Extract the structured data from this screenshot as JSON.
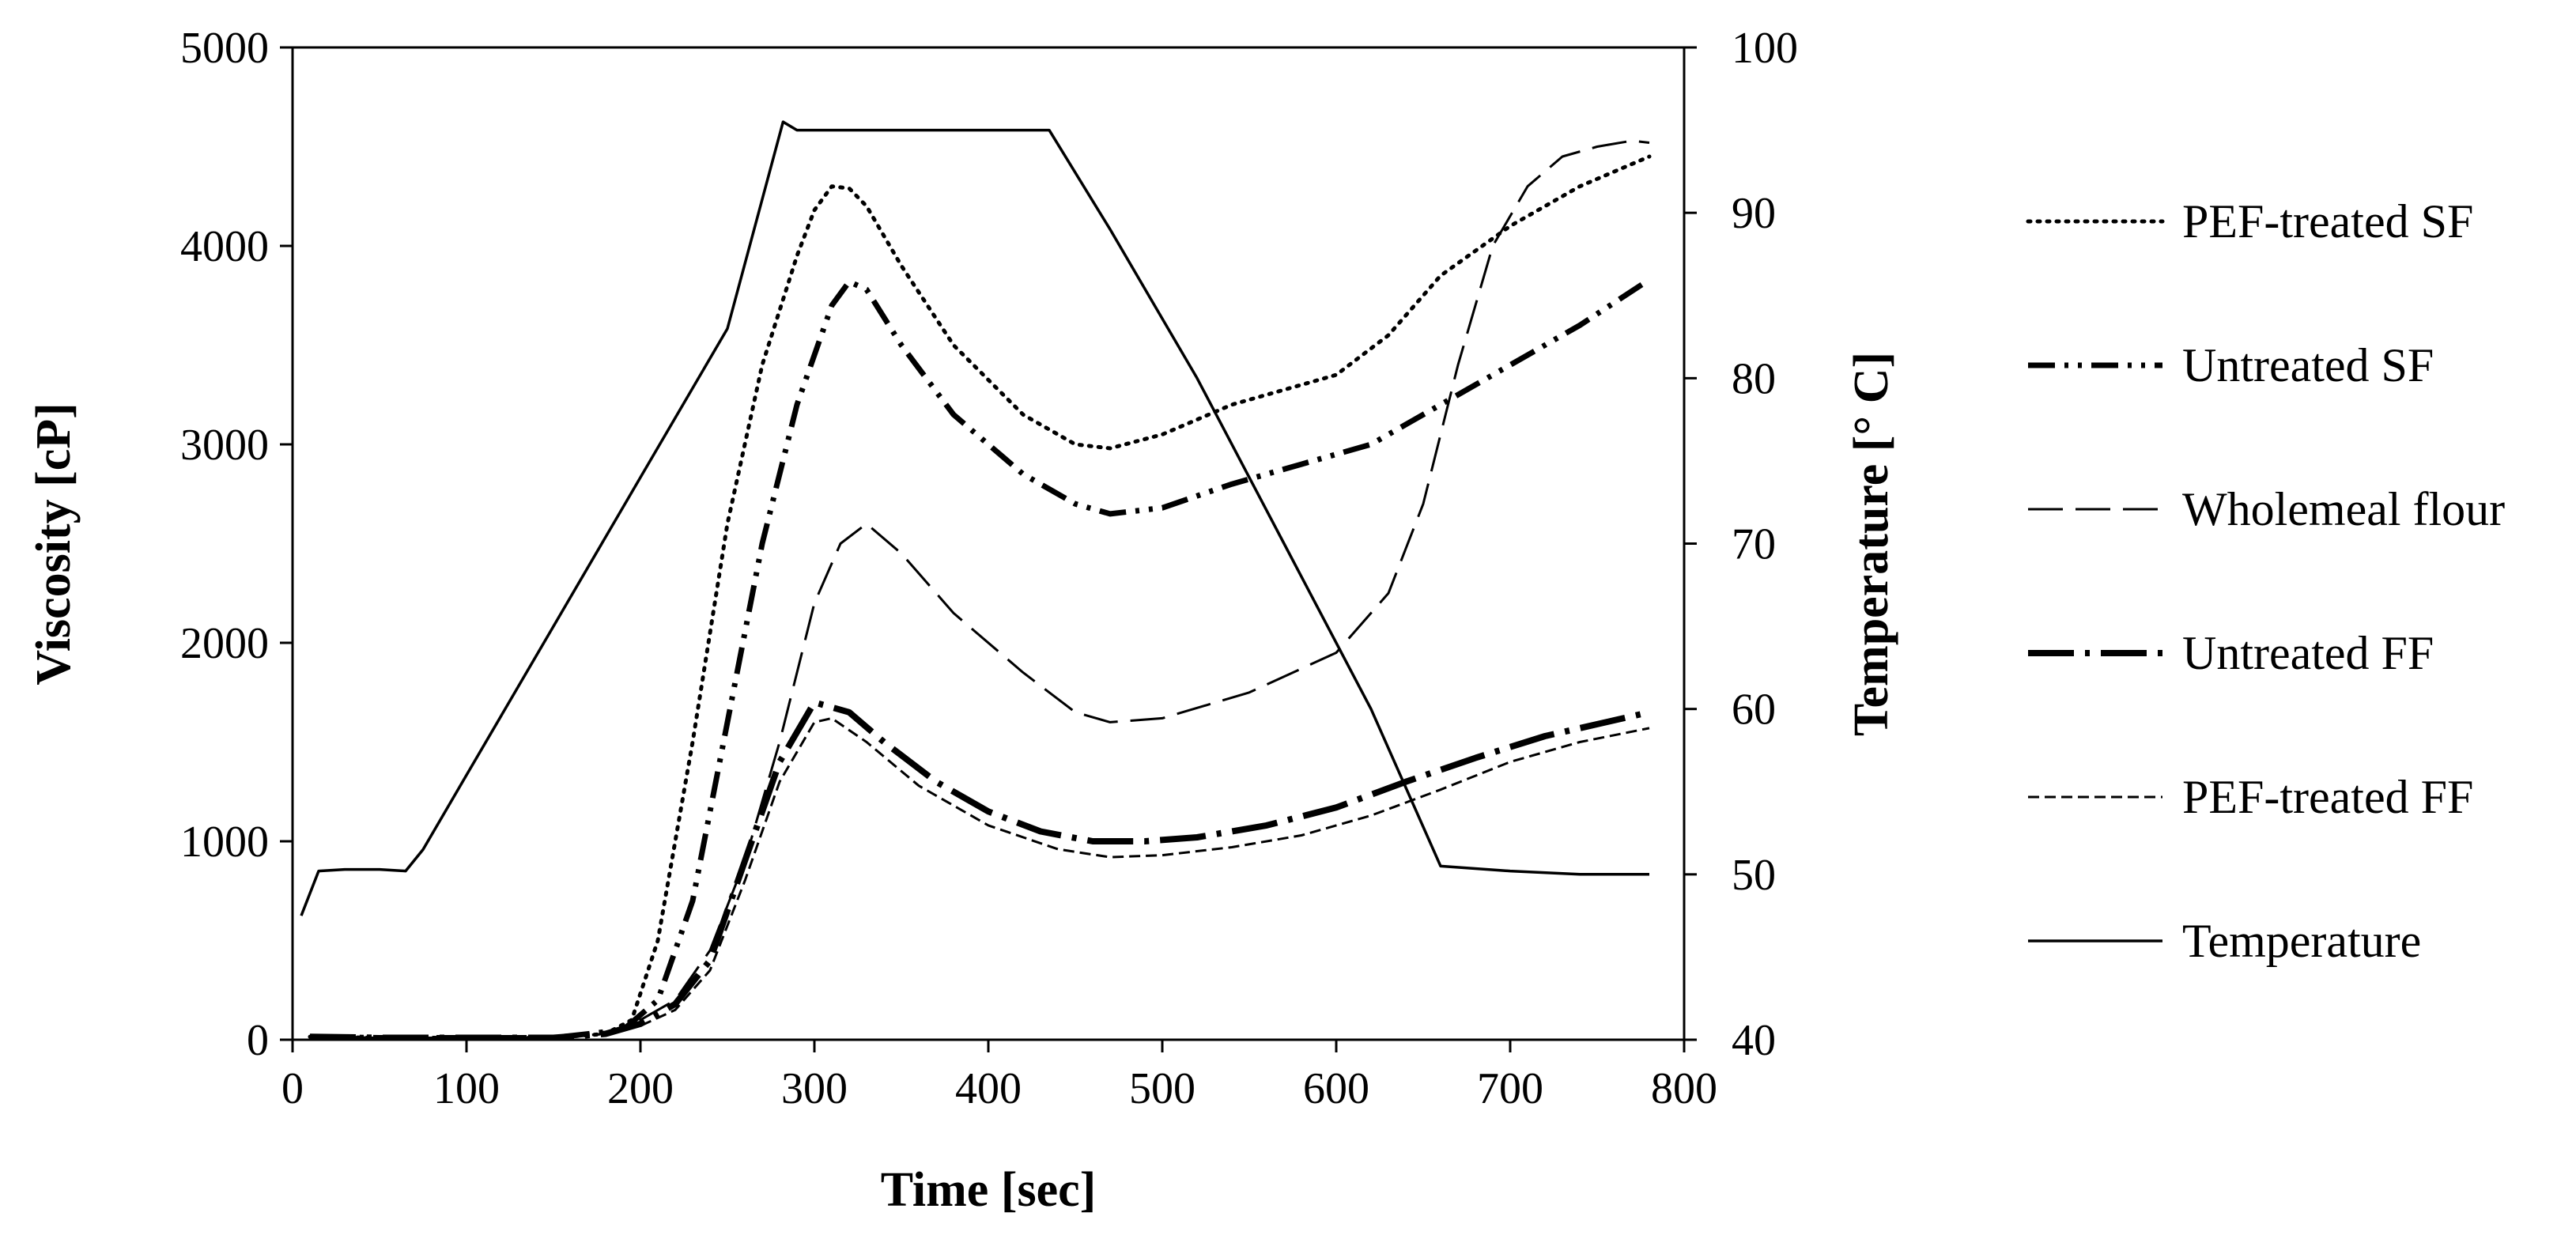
{
  "chart_data": {
    "type": "line",
    "title": "",
    "xlabel": "Time [sec]",
    "ylabel": "Viscosity [cP]",
    "y2label": "Temperature [° C]",
    "xlim": [
      0,
      800
    ],
    "ylim": [
      0,
      5000
    ],
    "y2lim": [
      40,
      100
    ],
    "xticks": [
      0,
      100,
      200,
      300,
      400,
      500,
      600,
      700,
      800
    ],
    "yticks": [
      0,
      1000,
      2000,
      3000,
      4000,
      5000
    ],
    "y2ticks": [
      40,
      50,
      60,
      70,
      80,
      90,
      100
    ],
    "grid": false,
    "legend_position": "right",
    "series": [
      {
        "name": "PEF-treated SF",
        "axis": "left",
        "dash": "dotted",
        "x": [
          10,
          50,
          100,
          150,
          180,
          195,
          210,
          230,
          250,
          270,
          290,
          300,
          310,
          320,
          330,
          350,
          380,
          420,
          450,
          470,
          500,
          540,
          580,
          600,
          630,
          660,
          700,
          740,
          780
        ],
        "y": [
          15,
          10,
          10,
          10,
          30,
          100,
          500,
          1500,
          2600,
          3400,
          3950,
          4180,
          4300,
          4290,
          4200,
          3900,
          3500,
          3150,
          3000,
          2980,
          3050,
          3200,
          3300,
          3350,
          3550,
          3850,
          4100,
          4300,
          4450
        ]
      },
      {
        "name": "Untreated SF",
        "axis": "left",
        "dash": "dashdotdot",
        "x": [
          10,
          50,
          100,
          150,
          190,
          210,
          230,
          250,
          270,
          290,
          310,
          320,
          330,
          350,
          380,
          420,
          450,
          470,
          500,
          540,
          580,
          620,
          660,
          700,
          740,
          780
        ],
        "y": [
          15,
          10,
          10,
          10,
          50,
          200,
          700,
          1600,
          2500,
          3200,
          3700,
          3820,
          3780,
          3500,
          3150,
          2850,
          2700,
          2650,
          2680,
          2800,
          2900,
          3000,
          3200,
          3400,
          3600,
          3830
        ]
      },
      {
        "name": "Wholemeal flour",
        "axis": "left",
        "dash": "dashed",
        "x": [
          10,
          50,
          100,
          150,
          180,
          200,
          220,
          240,
          260,
          280,
          300,
          315,
          330,
          350,
          380,
          420,
          450,
          470,
          500,
          550,
          600,
          630,
          650,
          670,
          690,
          710,
          730,
          750,
          770,
          780
        ],
        "y": [
          15,
          10,
          10,
          10,
          30,
          100,
          200,
          450,
          900,
          1500,
          2200,
          2500,
          2600,
          2450,
          2150,
          1850,
          1650,
          1600,
          1620,
          1750,
          1950,
          2250,
          2700,
          3400,
          4000,
          4300,
          4450,
          4500,
          4530,
          4520
        ]
      },
      {
        "name": "Untreated FF",
        "axis": "left",
        "dash": "longdashdot",
        "x": [
          10,
          50,
          100,
          150,
          180,
          200,
          220,
          240,
          260,
          280,
          300,
          320,
          340,
          370,
          400,
          430,
          460,
          490,
          520,
          560,
          600,
          640,
          680,
          720,
          760,
          780
        ],
        "y": [
          15,
          10,
          10,
          10,
          30,
          80,
          180,
          400,
          900,
          1400,
          1700,
          1650,
          1500,
          1300,
          1150,
          1050,
          1000,
          1000,
          1020,
          1080,
          1170,
          1300,
          1420,
          1530,
          1610,
          1650
        ]
      },
      {
        "name": "PEF-treated FF",
        "axis": "left",
        "dash": "shortdash",
        "x": [
          10,
          50,
          100,
          150,
          180,
          200,
          220,
          240,
          260,
          280,
          300,
          310,
          330,
          360,
          400,
          440,
          470,
          500,
          540,
          580,
          620,
          660,
          700,
          740,
          780
        ],
        "y": [
          15,
          10,
          10,
          10,
          30,
          70,
          150,
          350,
          800,
          1300,
          1600,
          1620,
          1500,
          1280,
          1080,
          960,
          920,
          930,
          970,
          1030,
          1130,
          1260,
          1400,
          1500,
          1570
        ]
      },
      {
        "name": "Temperature",
        "axis": "right",
        "dash": "solid",
        "x": [
          5,
          15,
          30,
          50,
          65,
          75,
          100,
          150,
          200,
          250,
          282,
          290,
          300,
          320,
          350,
          400,
          435,
          470,
          520,
          570,
          620,
          660,
          700,
          740,
          780
        ],
        "y": [
          47.5,
          50.2,
          50.3,
          50.3,
          50.2,
          51.5,
          56,
          65,
          74,
          83,
          95.5,
          95,
          95,
          95,
          95,
          95,
          95,
          89,
          80,
          70,
          60,
          50.5,
          50.2,
          50,
          50
        ]
      }
    ]
  }
}
